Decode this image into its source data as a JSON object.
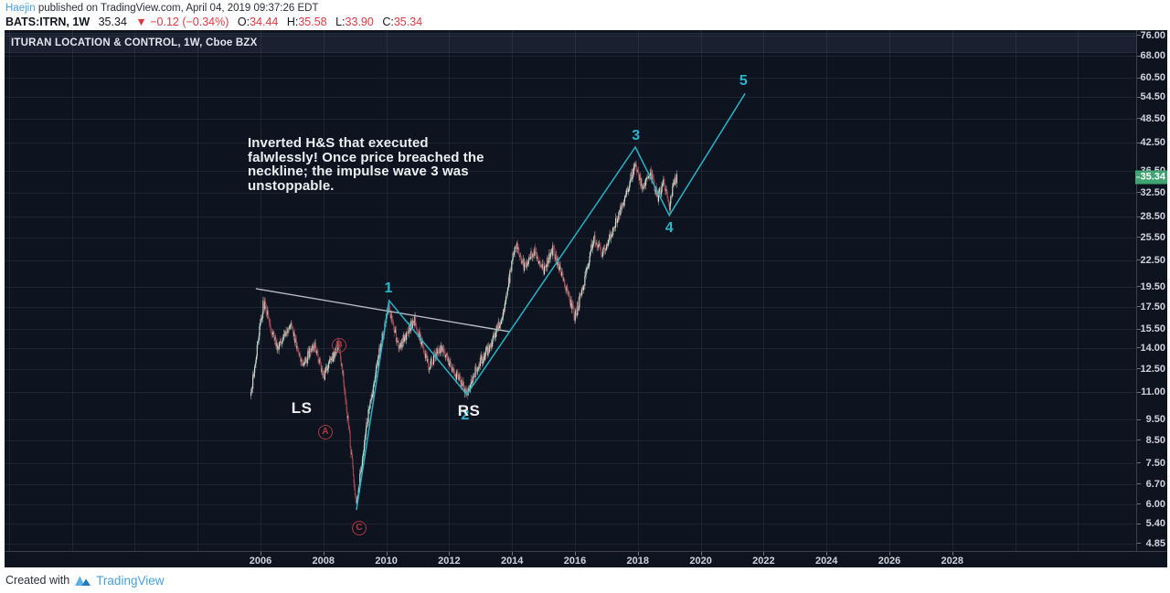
{
  "header": {
    "author": "Haejin",
    "published": "published on TradingView.com, April 04, 2019 09:37:26 EDT",
    "symbol": "BATS:ITRN, 1W",
    "last": "35.34",
    "change": "▼ −0.12 (−0.34%)",
    "ohlc": [
      {
        "label": "O:",
        "value": "34.44"
      },
      {
        "label": "H:",
        "value": "35.58"
      },
      {
        "label": "L:",
        "value": "33.90"
      },
      {
        "label": "C:",
        "value": "35.34"
      }
    ]
  },
  "chart": {
    "title": "ITURAN LOCATION & CONTROL, 1W, Cboe BZX",
    "note_lines": [
      "Inverted H&S that executed",
      "falwlessly! Once price breached the",
      "neckline; the impulse wave 3 was",
      "unstoppable."
    ]
  },
  "price_axis": {
    "ticks": [
      "76.00",
      "68.00",
      "60.50",
      "54.50",
      "48.50",
      "42.50",
      "36.50",
      "32.50",
      "28.50",
      "25.50",
      "22.50",
      "19.50",
      "17.50",
      "15.50",
      "14.00",
      "12.50",
      "11.00",
      "9.50",
      "8.50",
      "7.50",
      "6.70",
      "6.00",
      "5.40",
      "4.85"
    ],
    "last_price": "35.34"
  },
  "time_axis": {
    "labels": [
      "2006",
      "2008",
      "2010",
      "2012",
      "2014",
      "2016",
      "2018",
      "2020",
      "2022",
      "2024",
      "2026",
      "2028"
    ],
    "grid_years": [
      1998,
      2000,
      2002,
      2004,
      2006,
      2008,
      2010,
      2012,
      2014,
      2016,
      2018,
      2020,
      2022,
      2024,
      2026,
      2028,
      2030,
      2032
    ]
  },
  "footer": {
    "created_with": "Created with",
    "brand": "TradingView"
  },
  "colors": {
    "chart_bg": "#0e1320",
    "cyan_line": "#25b3c7",
    "neckline": "#b6bac4",
    "grid": "rgba(170,180,210,0.10)",
    "up_tag_bg": "#3fa471",
    "red_text": "#dd3b41",
    "author_blue": "#4ba0dd",
    "brand_blue": "#47a1dc",
    "candle_up_body": "#d4e6dc",
    "candle_up_wick": "rgba(148,196,170,0.9)",
    "candle_down_body": "#a34550",
    "candle_down_wick": "rgba(165,77,88,0.9)"
  },
  "chart_data": {
    "type": "candlestick",
    "symbol": "ITRN",
    "exchange": "Cboe BZX",
    "timeframe": "1W",
    "y_scale": "log",
    "x_unit": "year",
    "x_domain": [
      1997.86,
      2033.6
    ],
    "y_domain": [
      4.4,
      79.0
    ],
    "last_bar": {
      "open": 34.44,
      "high": 35.58,
      "low": 33.9,
      "close": 35.34,
      "change": -0.12,
      "change_pct": -0.34
    },
    "candles_start": 2005.7,
    "candles_end": 2019.25,
    "price_path": [
      [
        2005.7,
        11.0
      ],
      [
        2006.1,
        18.0
      ],
      [
        2006.55,
        13.8
      ],
      [
        2006.95,
        15.9
      ],
      [
        2007.35,
        12.7
      ],
      [
        2007.7,
        14.4
      ],
      [
        2008.0,
        12.0
      ],
      [
        2008.5,
        14.3
      ],
      [
        2008.8,
        9.2
      ],
      [
        2009.05,
        5.9
      ],
      [
        2009.35,
        9.0
      ],
      [
        2009.7,
        12.8
      ],
      [
        2010.07,
        17.6
      ],
      [
        2010.4,
        14.0
      ],
      [
        2010.9,
        16.3
      ],
      [
        2011.35,
        12.7
      ],
      [
        2011.75,
        14.1
      ],
      [
        2012.1,
        12.5
      ],
      [
        2012.56,
        11.0
      ],
      [
        2012.9,
        12.7
      ],
      [
        2013.35,
        14.3
      ],
      [
        2013.75,
        17.2
      ],
      [
        2014.1,
        24.8
      ],
      [
        2014.4,
        21.6
      ],
      [
        2014.7,
        23.7
      ],
      [
        2015.0,
        21.3
      ],
      [
        2015.3,
        23.9
      ],
      [
        2015.7,
        19.6
      ],
      [
        2016.0,
        16.5
      ],
      [
        2016.3,
        20.2
      ],
      [
        2016.6,
        25.3
      ],
      [
        2016.9,
        23.4
      ],
      [
        2017.3,
        27.6
      ],
      [
        2017.65,
        32.6
      ],
      [
        2017.92,
        38.2
      ],
      [
        2018.15,
        33.2
      ],
      [
        2018.4,
        36.2
      ],
      [
        2018.65,
        31.6
      ],
      [
        2018.82,
        34.6
      ],
      [
        2019.0,
        30.0
      ],
      [
        2019.15,
        34.2
      ],
      [
        2019.25,
        35.34
      ]
    ],
    "impulse_wave": {
      "points": [
        [
          2009.05,
          5.82
        ],
        [
          2010.09,
          18.09
        ],
        [
          2012.56,
          10.88
        ],
        [
          2017.92,
          41.55
        ],
        [
          2019.0,
          28.71
        ],
        [
          2021.41,
          55.55
        ]
      ]
    },
    "neckline": {
      "points": [
        [
          2005.85,
          19.3
        ],
        [
          2013.91,
          15.29
        ]
      ]
    },
    "labels": [
      {
        "text": "1",
        "t": 2010.07,
        "p": 19.3,
        "style": "cyan"
      },
      {
        "text": "2",
        "t": 2012.51,
        "p": 9.7,
        "style": "cyan"
      },
      {
        "text": "3",
        "t": 2017.94,
        "p": 44.0,
        "style": "cyan"
      },
      {
        "text": "4",
        "t": 2019.0,
        "p": 26.8,
        "style": "cyan"
      },
      {
        "text": "5",
        "t": 2021.36,
        "p": 59.3,
        "style": "cyan"
      },
      {
        "text": "LS",
        "t": 2007.31,
        "p": 10.1,
        "style": "white"
      },
      {
        "text": "RS",
        "t": 2012.63,
        "p": 9.94,
        "style": "white"
      },
      {
        "text": "A",
        "t": 2008.06,
        "p": 8.87,
        "style": "circle"
      },
      {
        "text": "B",
        "t": 2008.5,
        "p": 14.19,
        "style": "circle"
      },
      {
        "text": "C",
        "t": 2009.14,
        "p": 5.27,
        "style": "circle"
      }
    ]
  }
}
